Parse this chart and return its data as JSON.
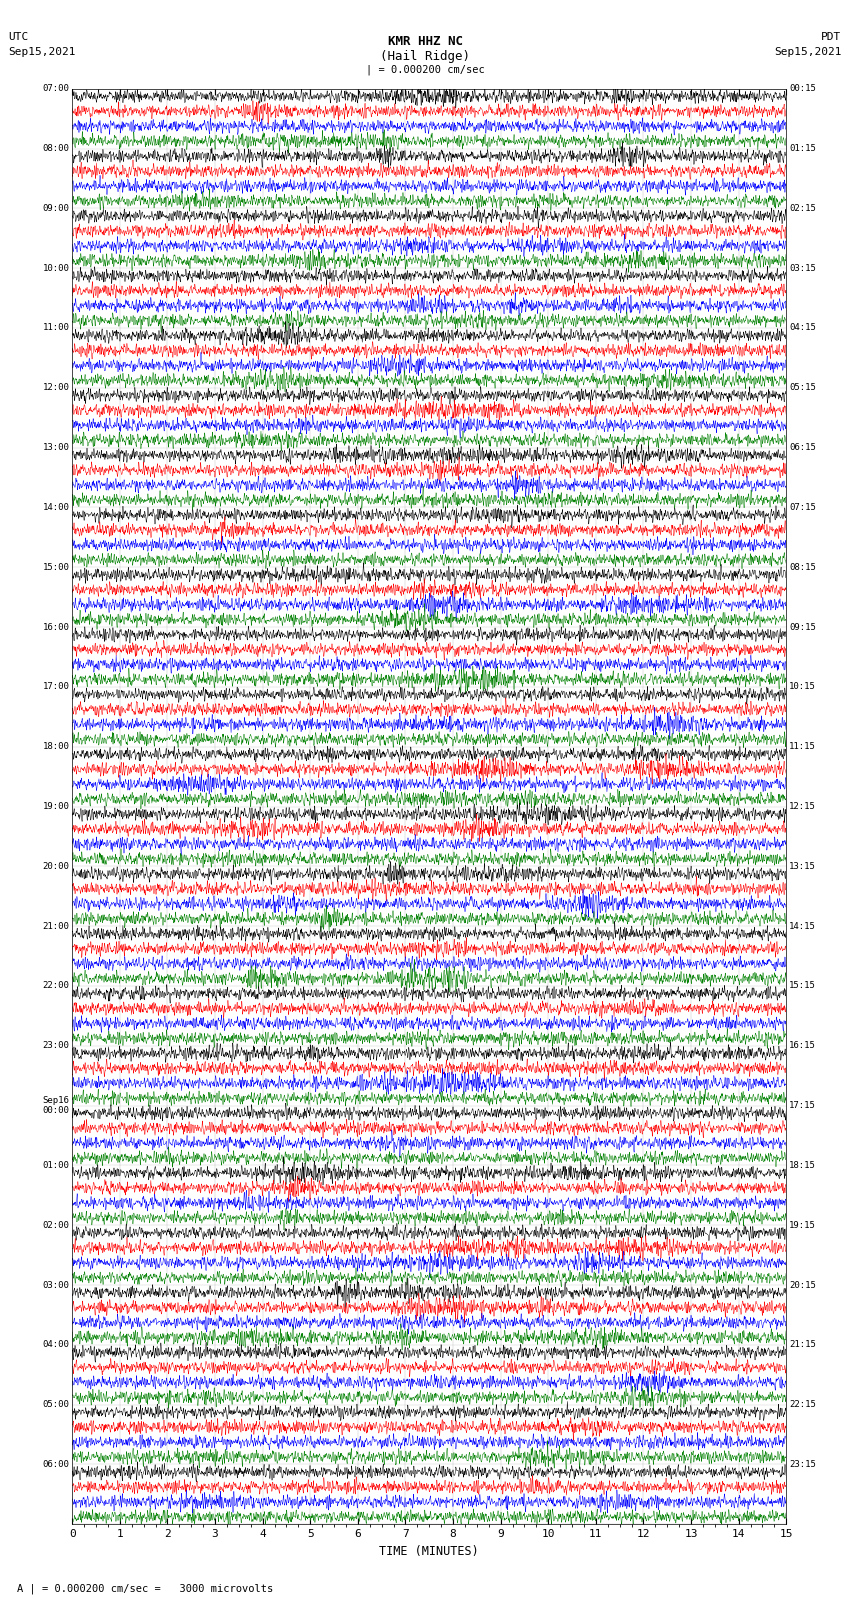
{
  "title_line1": "KMR HHZ NC",
  "title_line2": "(Hail Ridge)",
  "title_scale": "| = 0.000200 cm/sec",
  "label_utc": "UTC",
  "label_date_left": "Sep15,2021",
  "label_pdt": "PDT",
  "label_date_right": "Sep15,2021",
  "xlabel": "TIME (MINUTES)",
  "footer_text": "A | = 0.000200 cm/sec =   3000 microvolts",
  "left_times": [
    "07:00",
    "08:00",
    "09:00",
    "10:00",
    "11:00",
    "12:00",
    "13:00",
    "14:00",
    "15:00",
    "16:00",
    "17:00",
    "18:00",
    "19:00",
    "20:00",
    "21:00",
    "22:00",
    "23:00",
    "Sep16\n00:00",
    "01:00",
    "02:00",
    "03:00",
    "04:00",
    "05:00",
    "06:00"
  ],
  "right_times": [
    "00:15",
    "01:15",
    "02:15",
    "03:15",
    "04:15",
    "05:15",
    "06:15",
    "07:15",
    "08:15",
    "09:15",
    "10:15",
    "11:15",
    "12:15",
    "13:15",
    "14:15",
    "15:15",
    "16:15",
    "17:15",
    "18:15",
    "19:15",
    "20:15",
    "21:15",
    "22:15",
    "23:15"
  ],
  "n_rows": 24,
  "traces_per_row": 4,
  "colors": [
    "black",
    "red",
    "blue",
    "green"
  ],
  "background": "white",
  "xmin": 0,
  "xmax": 15,
  "xticks": [
    0,
    1,
    2,
    3,
    4,
    5,
    6,
    7,
    8,
    9,
    10,
    11,
    12,
    13,
    14,
    15
  ],
  "fig_width": 8.5,
  "fig_height": 16.13,
  "dpi": 100,
  "noise_seed": 42
}
